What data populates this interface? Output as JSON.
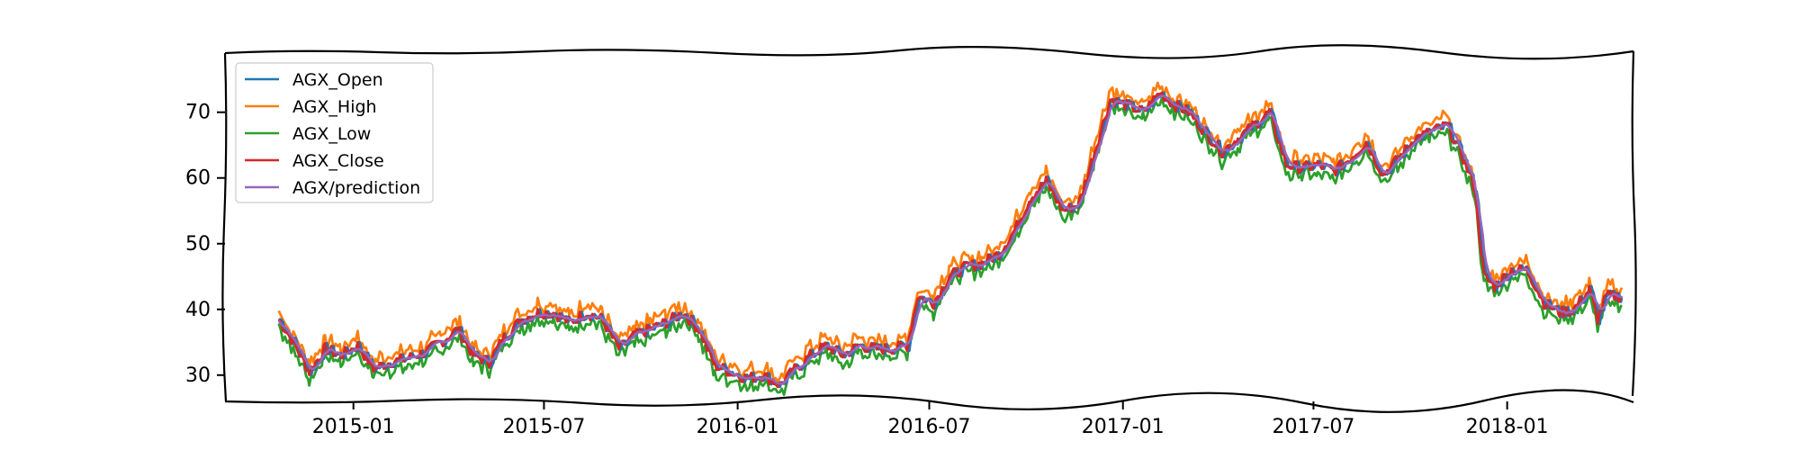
{
  "chart_data": {
    "type": "line",
    "title": "",
    "xlabel": "",
    "ylabel": "",
    "xlim": [
      "2014-09-01",
      "2018-05-01"
    ],
    "ylim": [
      26,
      79
    ],
    "x_ticks": [
      "2015-01",
      "2015-07",
      "2016-01",
      "2016-07",
      "2017-01",
      "2017-07",
      "2018-01"
    ],
    "y_ticks": [
      30,
      40,
      50,
      60,
      70
    ],
    "grid": false,
    "legend_position": "top-left",
    "series": [
      {
        "name": "AGX_Open",
        "color": "#1f77b4"
      },
      {
        "name": "AGX_High",
        "color": "#ff7f0e"
      },
      {
        "name": "AGX_Low",
        "color": "#2ca02c"
      },
      {
        "name": "AGX_Close",
        "color": "#d62728"
      },
      {
        "name": "AGX/prediction",
        "color": "#9467bd"
      }
    ],
    "close_points": [
      [
        "2014-10-22",
        38.5
      ],
      [
        "2014-11-05",
        35.0
      ],
      [
        "2014-11-20",
        30.5
      ],
      [
        "2014-12-05",
        34.0
      ],
      [
        "2014-12-20",
        33.0
      ],
      [
        "2015-01-05",
        34.5
      ],
      [
        "2015-01-20",
        31.0
      ],
      [
        "2015-02-05",
        32.0
      ],
      [
        "2015-02-20",
        32.5
      ],
      [
        "2015-03-10",
        33.5
      ],
      [
        "2015-03-25",
        35.0
      ],
      [
        "2015-04-10",
        37.0
      ],
      [
        "2015-04-25",
        33.0
      ],
      [
        "2015-05-10",
        32.0
      ],
      [
        "2015-05-25",
        36.0
      ],
      [
        "2015-06-10",
        38.5
      ],
      [
        "2015-06-25",
        39.5
      ],
      [
        "2015-07-10",
        39.5
      ],
      [
        "2015-07-25",
        38.0
      ],
      [
        "2015-08-10",
        39.5
      ],
      [
        "2015-08-25",
        38.5
      ],
      [
        "2015-09-10",
        34.0
      ],
      [
        "2015-09-25",
        36.0
      ],
      [
        "2015-10-10",
        37.0
      ],
      [
        "2015-10-25",
        38.0
      ],
      [
        "2015-11-10",
        39.5
      ],
      [
        "2015-11-25",
        37.0
      ],
      [
        "2015-12-10",
        31.5
      ],
      [
        "2015-12-25",
        30.5
      ],
      [
        "2016-01-10",
        29.5
      ],
      [
        "2016-01-25",
        30.0
      ],
      [
        "2016-02-10",
        28.5
      ],
      [
        "2016-02-25",
        31.0
      ],
      [
        "2016-03-10",
        33.0
      ],
      [
        "2016-03-25",
        34.5
      ],
      [
        "2016-04-10",
        33.0
      ],
      [
        "2016-04-25",
        34.5
      ],
      [
        "2016-05-10",
        34.0
      ],
      [
        "2016-05-25",
        34.0
      ],
      [
        "2016-06-10",
        34.5
      ],
      [
        "2016-06-20",
        42.0
      ],
      [
        "2016-07-05",
        41.0
      ],
      [
        "2016-07-20",
        45.0
      ],
      [
        "2016-08-05",
        46.5
      ],
      [
        "2016-08-20",
        47.0
      ],
      [
        "2016-09-05",
        48.5
      ],
      [
        "2016-09-20",
        52.0
      ],
      [
        "2016-10-05",
        57.0
      ],
      [
        "2016-10-20",
        59.5
      ],
      [
        "2016-11-05",
        55.0
      ],
      [
        "2016-11-20",
        56.0
      ],
      [
        "2016-12-05",
        64.0
      ],
      [
        "2016-12-20",
        72.0
      ],
      [
        "2017-01-05",
        71.0
      ],
      [
        "2017-01-20",
        70.0
      ],
      [
        "2017-02-05",
        73.0
      ],
      [
        "2017-02-20",
        71.0
      ],
      [
        "2017-03-05",
        70.0
      ],
      [
        "2017-03-20",
        67.0
      ],
      [
        "2017-04-05",
        64.0
      ],
      [
        "2017-04-20",
        66.0
      ],
      [
        "2017-05-05",
        68.0
      ],
      [
        "2017-05-20",
        70.0
      ],
      [
        "2017-06-05",
        62.0
      ],
      [
        "2017-06-20",
        61.5
      ],
      [
        "2017-07-05",
        62.0
      ],
      [
        "2017-07-20",
        61.0
      ],
      [
        "2017-08-05",
        63.0
      ],
      [
        "2017-08-20",
        65.5
      ],
      [
        "2017-09-05",
        60.5
      ],
      [
        "2017-09-20",
        63.0
      ],
      [
        "2017-10-05",
        66.0
      ],
      [
        "2017-10-20",
        67.0
      ],
      [
        "2017-11-05",
        68.0
      ],
      [
        "2017-11-20",
        63.0
      ],
      [
        "2017-12-01",
        58.5
      ],
      [
        "2017-12-10",
        45.0
      ],
      [
        "2017-12-20",
        43.5
      ],
      [
        "2018-01-05",
        46.0
      ],
      [
        "2018-01-20",
        46.0
      ],
      [
        "2018-02-05",
        41.0
      ],
      [
        "2018-02-20",
        39.5
      ],
      [
        "2018-03-05",
        40.0
      ],
      [
        "2018-03-20",
        43.0
      ],
      [
        "2018-03-28",
        38.5
      ],
      [
        "2018-04-05",
        42.0
      ],
      [
        "2018-04-20",
        42.0
      ]
    ]
  }
}
